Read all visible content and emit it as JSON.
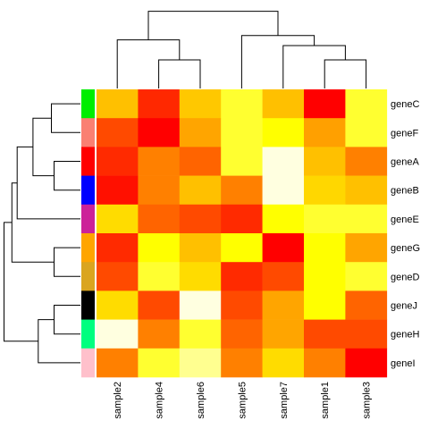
{
  "chart_data": {
    "type": "heatmap",
    "columns": [
      "sample2",
      "sample4",
      "sample6",
      "sample5",
      "sample7",
      "sample1",
      "sample3"
    ],
    "rows": [
      "geneC",
      "geneF",
      "geneA",
      "geneB",
      "geneE",
      "geneG",
      "geneD",
      "geneJ",
      "geneH",
      "geneI"
    ],
    "row_side_colors": [
      "#00ee00",
      "#fa8072",
      "#ff0000",
      "#0000ff",
      "#cc2299",
      "#ffa500",
      "#daa520",
      "#000000",
      "#00ff7f",
      "#ffc0cb"
    ],
    "cell_colors": [
      [
        "#ffc000",
        "#ff2800",
        "#ffc800",
        "#ffff30",
        "#ffc000",
        "#ff0000",
        "#ffff30"
      ],
      [
        "#ff4a00",
        "#ff0000",
        "#ffa500",
        "#ffff30",
        "#ffff00",
        "#ffa000",
        "#ffff30"
      ],
      [
        "#ff2a00",
        "#ff8000",
        "#ff6400",
        "#ffff30",
        "#ffffe0",
        "#ffc000",
        "#ff8000"
      ],
      [
        "#ff1000",
        "#ff8000",
        "#ffc000",
        "#ff8000",
        "#ffffe0",
        "#ffd700",
        "#ffc000"
      ],
      [
        "#ffdc00",
        "#ff6400",
        "#ff4a00",
        "#ff2a00",
        "#ffff00",
        "#ffff30",
        "#ffff30"
      ],
      [
        "#ff2a00",
        "#ffff00",
        "#ffc000",
        "#ffff00",
        "#ff0000",
        "#ffff00",
        "#ffa500"
      ],
      [
        "#ff4a00",
        "#ffff30",
        "#ffdc00",
        "#ff2a00",
        "#ff4a00",
        "#ffff00",
        "#ffff30"
      ],
      [
        "#ffdc00",
        "#ff4a00",
        "#ffffe0",
        "#ff4a00",
        "#ffa500",
        "#ffff00",
        "#ff6400"
      ],
      [
        "#ffffe0",
        "#ff8000",
        "#ffff30",
        "#ff6400",
        "#ffa500",
        "#ff4a00",
        "#ff4a00"
      ],
      [
        "#ff8000",
        "#ffff30",
        "#ffff90",
        "#ff8000",
        "#ffdc00",
        "#ff8000",
        "#ff0000"
      ]
    ],
    "column_dendrogram": [
      {
        "a": "sample4",
        "b": "sample6",
        "height": 1.0
      },
      {
        "a": "sample2",
        "b": "sample4+sample6",
        "height": 1.7
      },
      {
        "a": "sample1",
        "b": "sample3",
        "height": 1.0
      },
      {
        "a": "sample7",
        "b": "sample1+sample3",
        "height": 1.5
      },
      {
        "a": "sample5",
        "b": "sample7+sample1+sample3",
        "height": 1.85
      },
      {
        "a": "left",
        "b": "right",
        "height": 2.7
      }
    ],
    "row_dendrogram": [
      {
        "a": "geneC",
        "b": "geneF",
        "height": 1.1
      },
      {
        "a": "geneA",
        "b": "geneB",
        "height": 1.0
      },
      {
        "a": "geneC+geneF",
        "b": "geneA+geneB",
        "height": 1.8
      },
      {
        "a": "geneC+geneF+geneA+geneB",
        "b": "geneE",
        "height": 2.4
      },
      {
        "a": "geneG",
        "b": "geneD",
        "height": 1.0
      },
      {
        "a": "geneC+geneF+geneA+geneB+geneE",
        "b": "geneG+geneD",
        "height": 2.6
      },
      {
        "a": "geneJ",
        "b": "geneH",
        "height": 1.0
      },
      {
        "a": "geneJ+geneH",
        "b": "geneI",
        "height": 1.6
      },
      {
        "a": "top",
        "b": "bottom",
        "height": 2.9
      }
    ],
    "legend": "none"
  }
}
